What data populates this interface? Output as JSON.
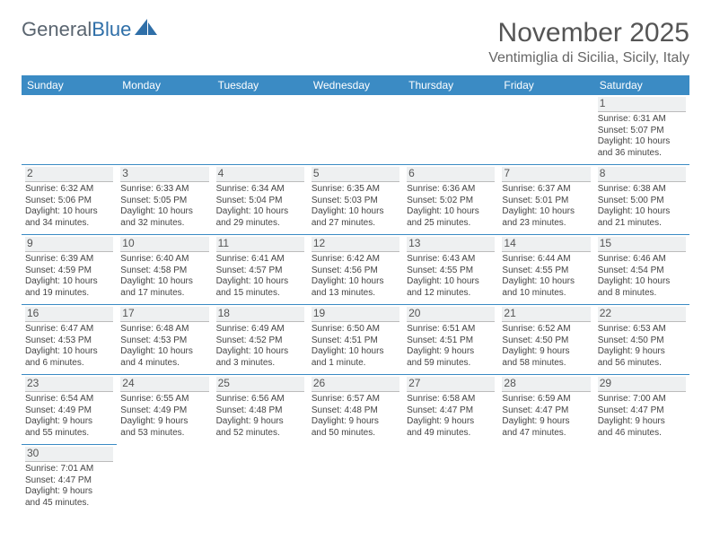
{
  "logo": {
    "word1": "General",
    "word2": "Blue"
  },
  "title": "November 2025",
  "location": "Ventimiglia di Sicilia, Sicily, Italy",
  "colors": {
    "header_bg": "#3b8bc4",
    "header_text": "#ffffff",
    "cell_border": "#3b8bc4",
    "daynum_bg": "#eef0f1",
    "daynum_divider": "#bcbcbc",
    "body_text": "#444444",
    "title_text": "#555555",
    "location_text": "#666666",
    "logo_gray": "#5a6570",
    "logo_blue": "#2f6fa8"
  },
  "typography": {
    "title_fontsize": 30,
    "location_fontsize": 16,
    "dayheader_fontsize": 12,
    "daynum_fontsize": 12,
    "cell_fontsize": 10
  },
  "day_headers": [
    "Sunday",
    "Monday",
    "Tuesday",
    "Wednesday",
    "Thursday",
    "Friday",
    "Saturday"
  ],
  "weeks": [
    [
      {
        "empty": true
      },
      {
        "empty": true
      },
      {
        "empty": true
      },
      {
        "empty": true
      },
      {
        "empty": true
      },
      {
        "empty": true
      },
      {
        "n": "1",
        "sunrise": "Sunrise: 6:31 AM",
        "sunset": "Sunset: 5:07 PM",
        "daylight1": "Daylight: 10 hours",
        "daylight2": "and 36 minutes."
      }
    ],
    [
      {
        "n": "2",
        "sunrise": "Sunrise: 6:32 AM",
        "sunset": "Sunset: 5:06 PM",
        "daylight1": "Daylight: 10 hours",
        "daylight2": "and 34 minutes."
      },
      {
        "n": "3",
        "sunrise": "Sunrise: 6:33 AM",
        "sunset": "Sunset: 5:05 PM",
        "daylight1": "Daylight: 10 hours",
        "daylight2": "and 32 minutes."
      },
      {
        "n": "4",
        "sunrise": "Sunrise: 6:34 AM",
        "sunset": "Sunset: 5:04 PM",
        "daylight1": "Daylight: 10 hours",
        "daylight2": "and 29 minutes."
      },
      {
        "n": "5",
        "sunrise": "Sunrise: 6:35 AM",
        "sunset": "Sunset: 5:03 PM",
        "daylight1": "Daylight: 10 hours",
        "daylight2": "and 27 minutes."
      },
      {
        "n": "6",
        "sunrise": "Sunrise: 6:36 AM",
        "sunset": "Sunset: 5:02 PM",
        "daylight1": "Daylight: 10 hours",
        "daylight2": "and 25 minutes."
      },
      {
        "n": "7",
        "sunrise": "Sunrise: 6:37 AM",
        "sunset": "Sunset: 5:01 PM",
        "daylight1": "Daylight: 10 hours",
        "daylight2": "and 23 minutes."
      },
      {
        "n": "8",
        "sunrise": "Sunrise: 6:38 AM",
        "sunset": "Sunset: 5:00 PM",
        "daylight1": "Daylight: 10 hours",
        "daylight2": "and 21 minutes."
      }
    ],
    [
      {
        "n": "9",
        "sunrise": "Sunrise: 6:39 AM",
        "sunset": "Sunset: 4:59 PM",
        "daylight1": "Daylight: 10 hours",
        "daylight2": "and 19 minutes."
      },
      {
        "n": "10",
        "sunrise": "Sunrise: 6:40 AM",
        "sunset": "Sunset: 4:58 PM",
        "daylight1": "Daylight: 10 hours",
        "daylight2": "and 17 minutes."
      },
      {
        "n": "11",
        "sunrise": "Sunrise: 6:41 AM",
        "sunset": "Sunset: 4:57 PM",
        "daylight1": "Daylight: 10 hours",
        "daylight2": "and 15 minutes."
      },
      {
        "n": "12",
        "sunrise": "Sunrise: 6:42 AM",
        "sunset": "Sunset: 4:56 PM",
        "daylight1": "Daylight: 10 hours",
        "daylight2": "and 13 minutes."
      },
      {
        "n": "13",
        "sunrise": "Sunrise: 6:43 AM",
        "sunset": "Sunset: 4:55 PM",
        "daylight1": "Daylight: 10 hours",
        "daylight2": "and 12 minutes."
      },
      {
        "n": "14",
        "sunrise": "Sunrise: 6:44 AM",
        "sunset": "Sunset: 4:55 PM",
        "daylight1": "Daylight: 10 hours",
        "daylight2": "and 10 minutes."
      },
      {
        "n": "15",
        "sunrise": "Sunrise: 6:46 AM",
        "sunset": "Sunset: 4:54 PM",
        "daylight1": "Daylight: 10 hours",
        "daylight2": "and 8 minutes."
      }
    ],
    [
      {
        "n": "16",
        "sunrise": "Sunrise: 6:47 AM",
        "sunset": "Sunset: 4:53 PM",
        "daylight1": "Daylight: 10 hours",
        "daylight2": "and 6 minutes."
      },
      {
        "n": "17",
        "sunrise": "Sunrise: 6:48 AM",
        "sunset": "Sunset: 4:53 PM",
        "daylight1": "Daylight: 10 hours",
        "daylight2": "and 4 minutes."
      },
      {
        "n": "18",
        "sunrise": "Sunrise: 6:49 AM",
        "sunset": "Sunset: 4:52 PM",
        "daylight1": "Daylight: 10 hours",
        "daylight2": "and 3 minutes."
      },
      {
        "n": "19",
        "sunrise": "Sunrise: 6:50 AM",
        "sunset": "Sunset: 4:51 PM",
        "daylight1": "Daylight: 10 hours",
        "daylight2": "and 1 minute."
      },
      {
        "n": "20",
        "sunrise": "Sunrise: 6:51 AM",
        "sunset": "Sunset: 4:51 PM",
        "daylight1": "Daylight: 9 hours",
        "daylight2": "and 59 minutes."
      },
      {
        "n": "21",
        "sunrise": "Sunrise: 6:52 AM",
        "sunset": "Sunset: 4:50 PM",
        "daylight1": "Daylight: 9 hours",
        "daylight2": "and 58 minutes."
      },
      {
        "n": "22",
        "sunrise": "Sunrise: 6:53 AM",
        "sunset": "Sunset: 4:50 PM",
        "daylight1": "Daylight: 9 hours",
        "daylight2": "and 56 minutes."
      }
    ],
    [
      {
        "n": "23",
        "sunrise": "Sunrise: 6:54 AM",
        "sunset": "Sunset: 4:49 PM",
        "daylight1": "Daylight: 9 hours",
        "daylight2": "and 55 minutes."
      },
      {
        "n": "24",
        "sunrise": "Sunrise: 6:55 AM",
        "sunset": "Sunset: 4:49 PM",
        "daylight1": "Daylight: 9 hours",
        "daylight2": "and 53 minutes."
      },
      {
        "n": "25",
        "sunrise": "Sunrise: 6:56 AM",
        "sunset": "Sunset: 4:48 PM",
        "daylight1": "Daylight: 9 hours",
        "daylight2": "and 52 minutes."
      },
      {
        "n": "26",
        "sunrise": "Sunrise: 6:57 AM",
        "sunset": "Sunset: 4:48 PM",
        "daylight1": "Daylight: 9 hours",
        "daylight2": "and 50 minutes."
      },
      {
        "n": "27",
        "sunrise": "Sunrise: 6:58 AM",
        "sunset": "Sunset: 4:47 PM",
        "daylight1": "Daylight: 9 hours",
        "daylight2": "and 49 minutes."
      },
      {
        "n": "28",
        "sunrise": "Sunrise: 6:59 AM",
        "sunset": "Sunset: 4:47 PM",
        "daylight1": "Daylight: 9 hours",
        "daylight2": "and 47 minutes."
      },
      {
        "n": "29",
        "sunrise": "Sunrise: 7:00 AM",
        "sunset": "Sunset: 4:47 PM",
        "daylight1": "Daylight: 9 hours",
        "daylight2": "and 46 minutes."
      }
    ],
    [
      {
        "n": "30",
        "sunrise": "Sunrise: 7:01 AM",
        "sunset": "Sunset: 4:47 PM",
        "daylight1": "Daylight: 9 hours",
        "daylight2": "and 45 minutes."
      },
      {
        "empty": true
      },
      {
        "empty": true
      },
      {
        "empty": true
      },
      {
        "empty": true
      },
      {
        "empty": true
      },
      {
        "empty": true
      }
    ]
  ]
}
